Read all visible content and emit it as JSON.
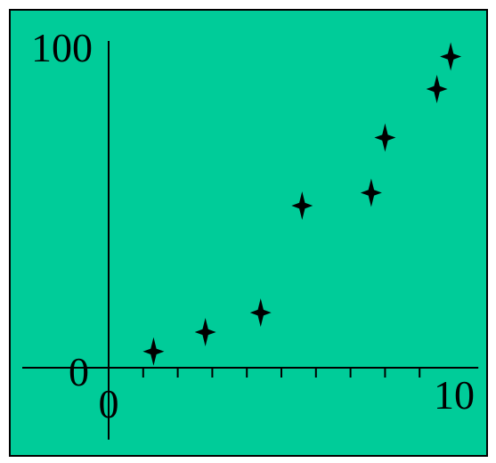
{
  "chart_data": {
    "type": "scatter",
    "title": "",
    "xlabel": "",
    "ylabel": "",
    "xlim": [
      -2.5,
      10.7
    ],
    "ylim": [
      -20,
      100
    ],
    "x_tick_labels": [
      "0",
      "10"
    ],
    "y_tick_labels": [
      "0",
      "100"
    ],
    "x_minor_ticks": [
      1,
      2,
      3,
      4,
      5,
      6,
      7,
      8,
      9
    ],
    "grid": false,
    "marker": "four-point-star",
    "colors": {
      "background": "#00cc99",
      "marker": "#000000",
      "axis": "#000000"
    },
    "points": [
      {
        "x": 1.3,
        "y": 5
      },
      {
        "x": 2.8,
        "y": 11
      },
      {
        "x": 4.4,
        "y": 17
      },
      {
        "x": 5.6,
        "y": 50
      },
      {
        "x": 7.6,
        "y": 54
      },
      {
        "x": 8.0,
        "y": 71
      },
      {
        "x": 9.5,
        "y": 86
      },
      {
        "x": 9.9,
        "y": 96
      }
    ]
  }
}
